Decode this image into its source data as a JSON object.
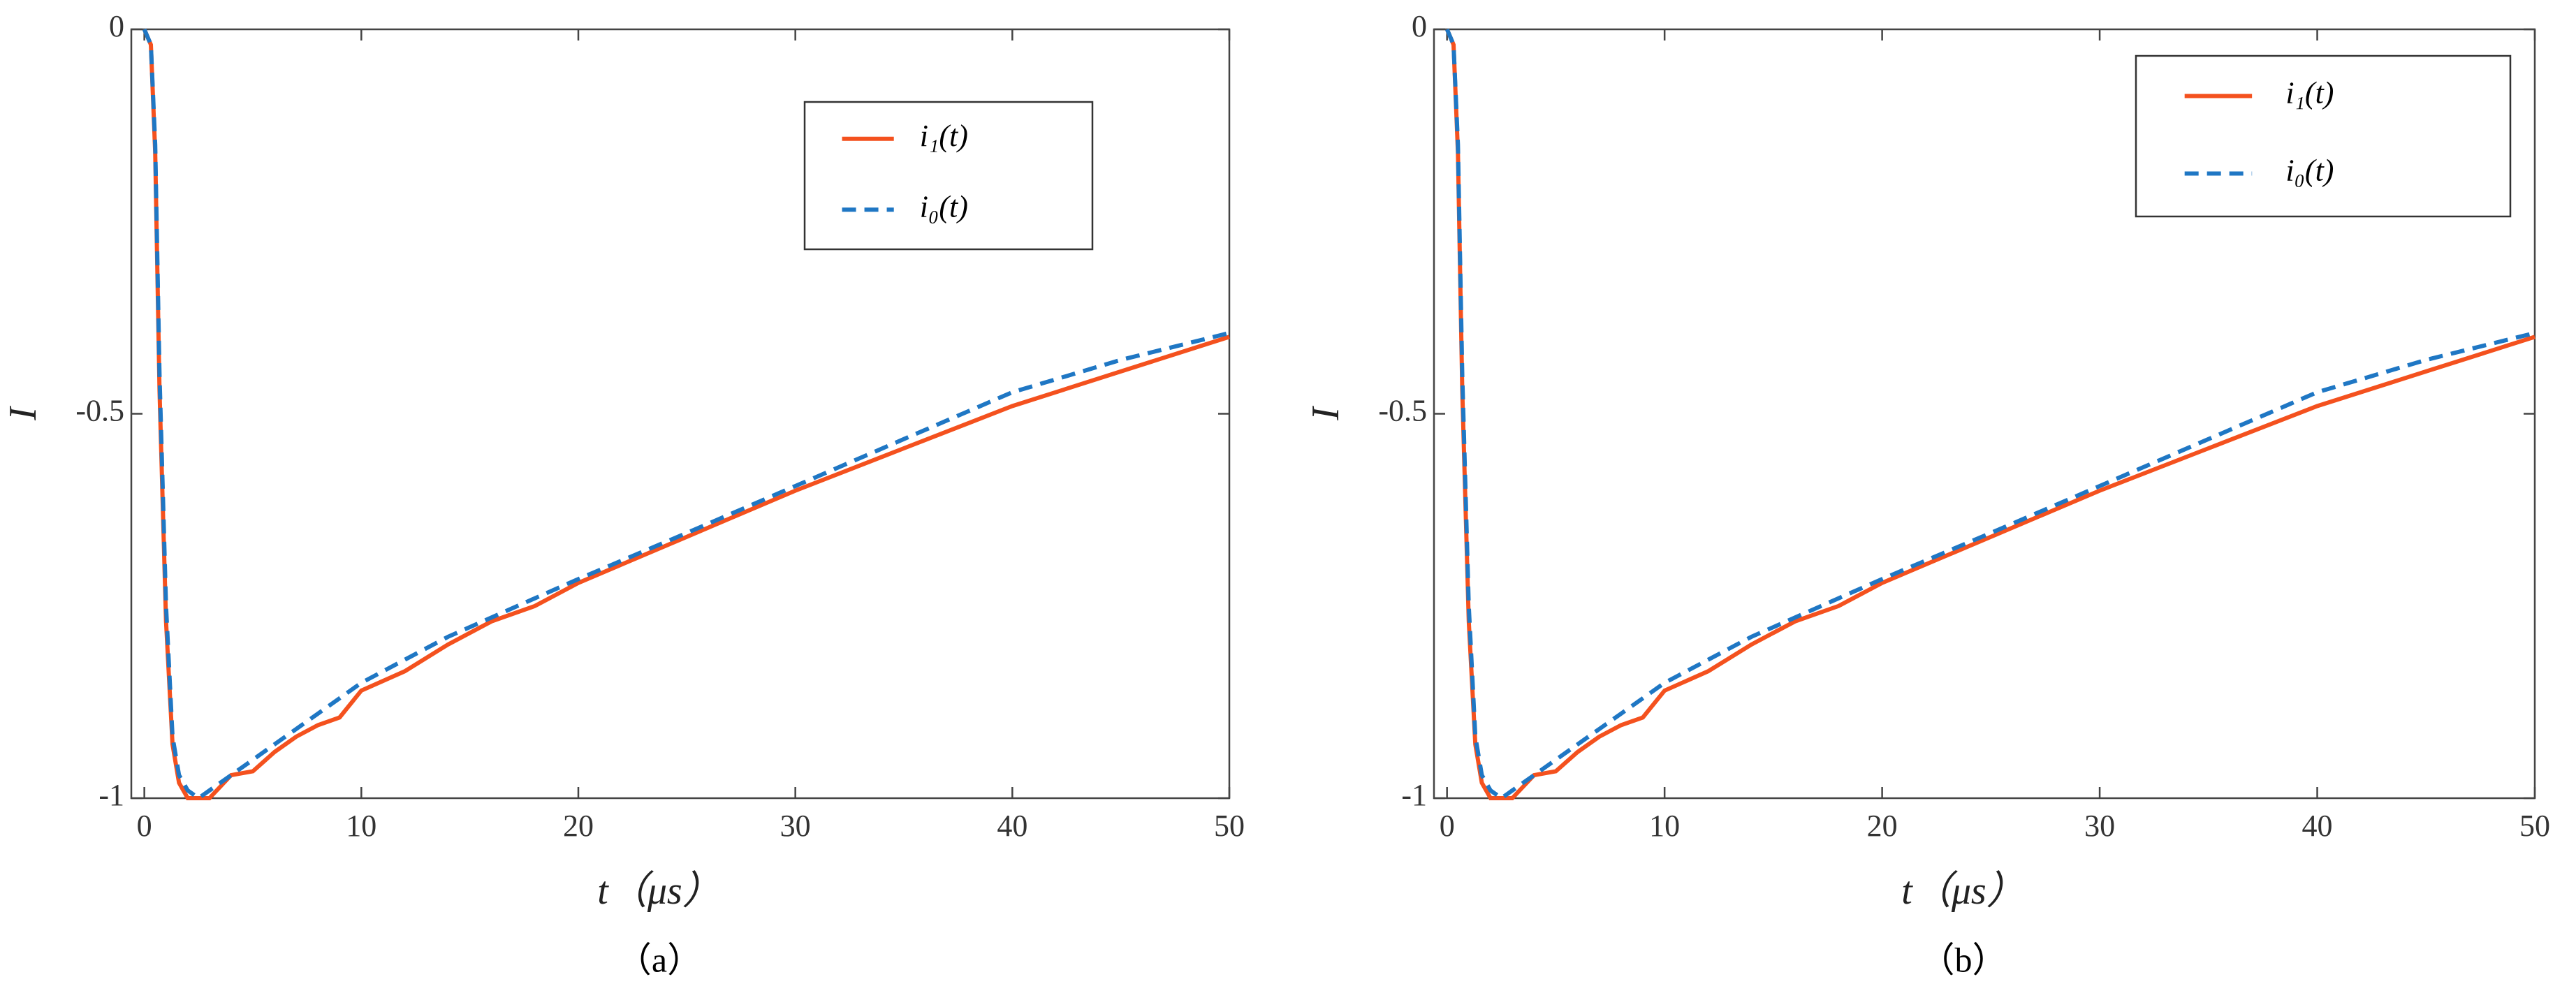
{
  "chart_data": [
    {
      "type": "line",
      "caption": "（a）",
      "xlabel": "t（μs）",
      "ylabel": "I",
      "x": [
        0,
        0.3,
        0.5,
        0.7,
        1,
        1.3,
        1.6,
        2,
        2.5,
        3,
        3.5,
        4,
        5,
        6,
        7,
        8,
        9,
        10,
        12,
        14,
        16,
        18,
        20,
        25,
        30,
        35,
        40,
        45,
        50
      ],
      "series": [
        {
          "name": "i₁(t)",
          "color": "#f4511e",
          "style": "solid",
          "values": [
            0,
            -0.02,
            -0.16,
            -0.47,
            -0.77,
            -0.93,
            -0.98,
            -1.0,
            -1.0,
            -1.0,
            -0.985,
            -0.97,
            -0.965,
            -0.94,
            -0.92,
            -0.905,
            -0.895,
            -0.86,
            -0.835,
            -0.8,
            -0.77,
            -0.75,
            -0.72,
            -0.66,
            -0.6,
            -0.545,
            -0.49,
            -0.445,
            -0.4
          ]
        },
        {
          "name": "i₀(t)",
          "color": "#1f77c4",
          "style": "dashed",
          "values": [
            0,
            -0.02,
            -0.15,
            -0.45,
            -0.75,
            -0.92,
            -0.97,
            -0.99,
            -1.0,
            -0.99,
            -0.98,
            -0.97,
            -0.95,
            -0.93,
            -0.91,
            -0.89,
            -0.87,
            -0.85,
            -0.82,
            -0.79,
            -0.765,
            -0.74,
            -0.715,
            -0.655,
            -0.594,
            -0.533,
            -0.472,
            -0.43,
            -0.395
          ]
        }
      ],
      "xlim": [
        -0.6,
        50
      ],
      "ylim": [
        -1,
        0
      ],
      "xticks": [
        0,
        10,
        20,
        30,
        40,
        50
      ],
      "yticks": [
        -1,
        -0.5,
        0
      ],
      "legend": "upper right"
    },
    {
      "type": "line",
      "caption": "（b）",
      "xlabel": "t（μs）",
      "ylabel": "I",
      "x": [
        0,
        0.3,
        0.5,
        0.7,
        1,
        1.3,
        1.6,
        2,
        2.5,
        3,
        3.5,
        4,
        5,
        6,
        7,
        8,
        9,
        10,
        12,
        14,
        16,
        18,
        20,
        25,
        30,
        35,
        40,
        45,
        50
      ],
      "series": [
        {
          "name": "i₁(t)",
          "color": "#f4511e",
          "style": "solid",
          "values": [
            0,
            -0.02,
            -0.16,
            -0.47,
            -0.77,
            -0.93,
            -0.98,
            -1.0,
            -1.0,
            -1.0,
            -0.985,
            -0.97,
            -0.965,
            -0.94,
            -0.92,
            -0.905,
            -0.895,
            -0.86,
            -0.835,
            -0.8,
            -0.77,
            -0.75,
            -0.72,
            -0.66,
            -0.6,
            -0.545,
            -0.49,
            -0.445,
            -0.4
          ]
        },
        {
          "name": "i₀(t)",
          "color": "#1f77c4",
          "style": "dashed",
          "values": [
            0,
            -0.02,
            -0.15,
            -0.45,
            -0.75,
            -0.92,
            -0.97,
            -0.99,
            -1.0,
            -0.99,
            -0.98,
            -0.97,
            -0.95,
            -0.93,
            -0.91,
            -0.89,
            -0.87,
            -0.85,
            -0.82,
            -0.79,
            -0.765,
            -0.74,
            -0.715,
            -0.655,
            -0.594,
            -0.533,
            -0.472,
            -0.43,
            -0.395
          ]
        }
      ],
      "xlim": [
        -0.6,
        50
      ],
      "ylim": [
        -1,
        0
      ],
      "xticks": [
        0,
        10,
        20,
        30,
        40,
        50
      ],
      "yticks": [
        -1,
        -0.5,
        0
      ],
      "legend": "upper right"
    }
  ]
}
